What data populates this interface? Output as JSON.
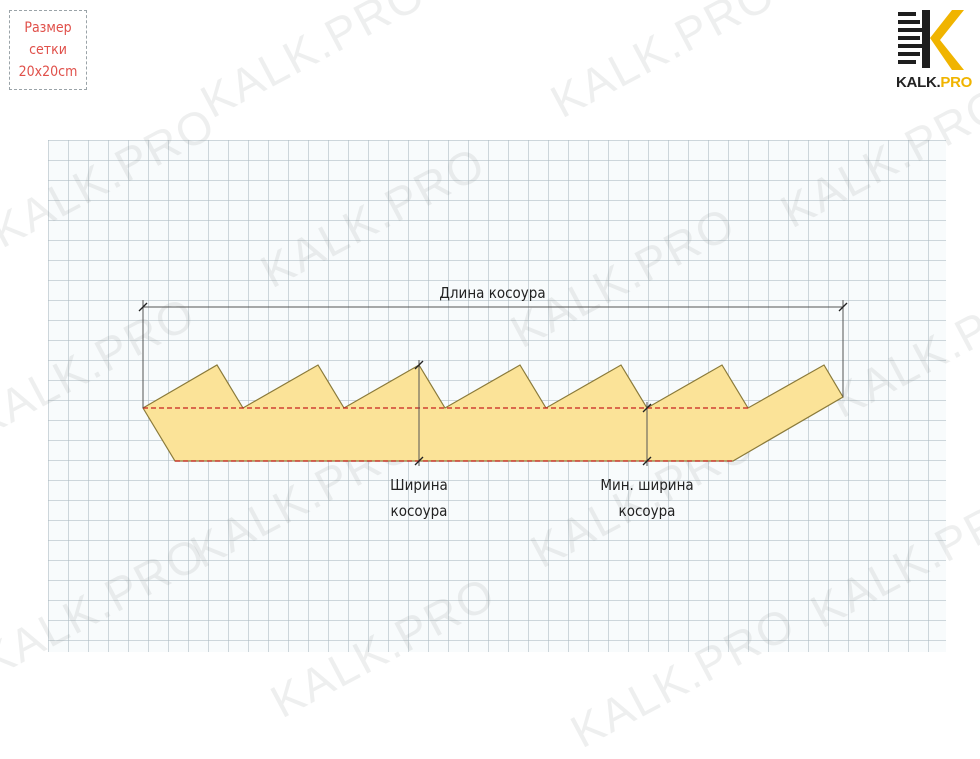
{
  "grid_note": {
    "line1": "Размер",
    "line2": "сетки",
    "line3": "20х20cm"
  },
  "logo": {
    "brand": "KALK",
    "dot": ".",
    "suffix": "PRO"
  },
  "watermark": "KALK.PRO",
  "labels": {
    "length": "Длина косоура",
    "width_line1": "Ширина",
    "width_line2": "косоура",
    "min_width_line1": "Мин. ширина",
    "min_width_line2": "косоура"
  },
  "colors": {
    "stringer_fill": "#fbe398",
    "stringer_stroke": "#8a7a3a",
    "cut_line": "#c8231f",
    "dimension_line": "#555555",
    "logo_accent": "#f0b400",
    "grid_note_text": "#e0504a"
  }
}
